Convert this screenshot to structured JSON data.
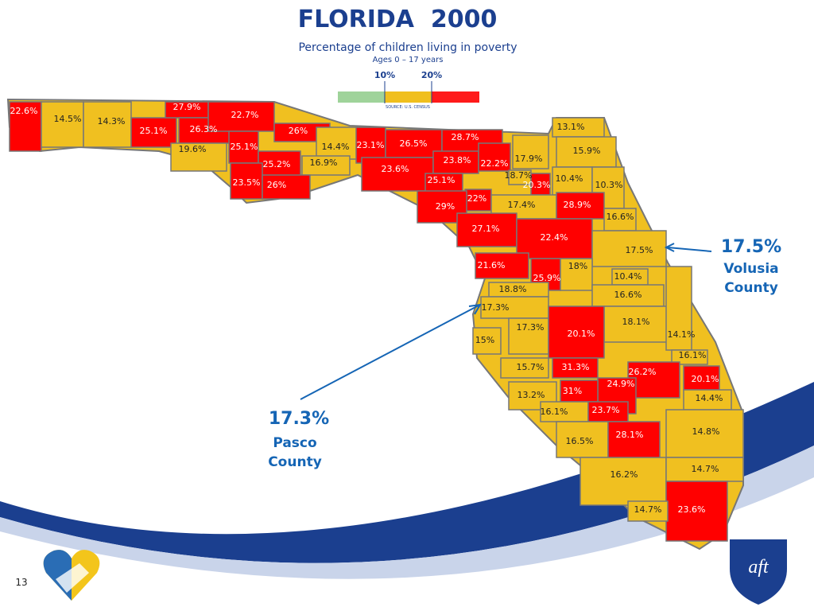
{
  "header": {
    "title": "FLORIDA  2000",
    "subtitle": "Percentage of children living in poverty",
    "ages": "Ages 0 – 17 years",
    "legend": {
      "labels": [
        "10%",
        "20%"
      ],
      "colors": [
        "#9fd39a",
        "#f0bf1e",
        "#ff1a1a"
      ]
    },
    "source": "SOURCE: U.S. CENSUS"
  },
  "counties": [
    {
      "label": "22.6%",
      "fill": "#ff0000"
    },
    {
      "label": "14.5%",
      "fill": "#f0c020"
    },
    {
      "label": "14.3%",
      "fill": "#f0c020"
    },
    {
      "label": "25.1%",
      "fill": "#ff0000"
    },
    {
      "label": "27.9%",
      "fill": "#ff0000"
    },
    {
      "label": "26.3%",
      "fill": "#ff0000"
    },
    {
      "label": "22.7%",
      "fill": "#ff0000"
    },
    {
      "label": "19.6%",
      "fill": "#f0c020"
    },
    {
      "label": "25.1%",
      "fill": "#ff0000"
    },
    {
      "label": "26%",
      "fill": "#ff0000"
    },
    {
      "label": "25.2%",
      "fill": "#ff0000"
    },
    {
      "label": "14.4%",
      "fill": "#f0c020"
    },
    {
      "label": "16.9%",
      "fill": "#f0c020"
    },
    {
      "label": "23.5%",
      "fill": "#ff0000"
    },
    {
      "label": "26%",
      "fill": "#ff0000"
    },
    {
      "label": "23.1%",
      "fill": "#ff0000"
    },
    {
      "label": "26.5%",
      "fill": "#ff0000"
    },
    {
      "label": "28.7%",
      "fill": "#ff0000"
    },
    {
      "label": "23.6%",
      "fill": "#ff0000"
    },
    {
      "label": "23.8%",
      "fill": "#ff0000"
    },
    {
      "label": "25.1%",
      "fill": "#ff0000"
    },
    {
      "label": "22.2%",
      "fill": "#ff0000"
    },
    {
      "label": "17.9%",
      "fill": "#f0c020"
    },
    {
      "label": "18.7%",
      "fill": "#f0c020"
    },
    {
      "label": "20.3%",
      "fill": "#ff0000"
    },
    {
      "label": "13.1%",
      "fill": "#f0c020"
    },
    {
      "label": "15.9%",
      "fill": "#f0c020"
    },
    {
      "label": "10.4%",
      "fill": "#f0c020"
    },
    {
      "label": "10.3%",
      "fill": "#f0c020"
    },
    {
      "label": "22%",
      "fill": "#ff0000"
    },
    {
      "label": "29%",
      "fill": "#ff0000"
    },
    {
      "label": "17.4%",
      "fill": "#f0c020"
    },
    {
      "label": "28.9%",
      "fill": "#ff0000"
    },
    {
      "label": "16.6%",
      "fill": "#f0c020"
    },
    {
      "label": "27.1%",
      "fill": "#ff0000"
    },
    {
      "label": "22.4%",
      "fill": "#ff0000"
    },
    {
      "label": "17.5%",
      "fill": "#f0c020"
    },
    {
      "label": "21.6%",
      "fill": "#ff0000"
    },
    {
      "label": "25.9%",
      "fill": "#ff0000"
    },
    {
      "label": "18%",
      "fill": "#f0c020"
    },
    {
      "label": "10.4%",
      "fill": "#f0c020"
    },
    {
      "label": "16.6%",
      "fill": "#f0c020"
    },
    {
      "label": "18.8%",
      "fill": "#f0c020"
    },
    {
      "label": "17.3%",
      "fill": "#f0c020"
    },
    {
      "label": "17.3%",
      "fill": "#f0c020"
    },
    {
      "label": "15%",
      "fill": "#f0c020"
    },
    {
      "label": "18.1%",
      "fill": "#f0c020"
    },
    {
      "label": "20.1%",
      "fill": "#ff0000"
    },
    {
      "label": "14.1%",
      "fill": "#f0c020"
    },
    {
      "label": "16.1%",
      "fill": "#f0c020"
    },
    {
      "label": "15.7%",
      "fill": "#f0c020"
    },
    {
      "label": "31.3%",
      "fill": "#ff0000"
    },
    {
      "label": "26.2%",
      "fill": "#ff0000"
    },
    {
      "label": "20.1%",
      "fill": "#ff0000"
    },
    {
      "label": "24.9%",
      "fill": "#ff0000"
    },
    {
      "label": "13.2%",
      "fill": "#f0c020"
    },
    {
      "label": "31%",
      "fill": "#ff0000"
    },
    {
      "label": "14.4%",
      "fill": "#f0c020"
    },
    {
      "label": "16.1%",
      "fill": "#f0c020"
    },
    {
      "label": "23.7%",
      "fill": "#ff0000"
    },
    {
      "label": "14.8%",
      "fill": "#f0c020"
    },
    {
      "label": "16.5%",
      "fill": "#f0c020"
    },
    {
      "label": "28.1%",
      "fill": "#ff0000"
    },
    {
      "label": "16.2%",
      "fill": "#f0c020"
    },
    {
      "label": "14.7%",
      "fill": "#f0c020"
    },
    {
      "label": "23.6%",
      "fill": "#ff0000"
    },
    {
      "label": "14.7%",
      "fill": "#f0c020"
    }
  ],
  "callouts": [
    {
      "value": "17.5%",
      "lines": [
        "Volusia",
        "County"
      ]
    },
    {
      "value": "17.3%",
      "lines": [
        "Pasco",
        "County"
      ]
    }
  ],
  "page_number": "13",
  "logo": "aft"
}
